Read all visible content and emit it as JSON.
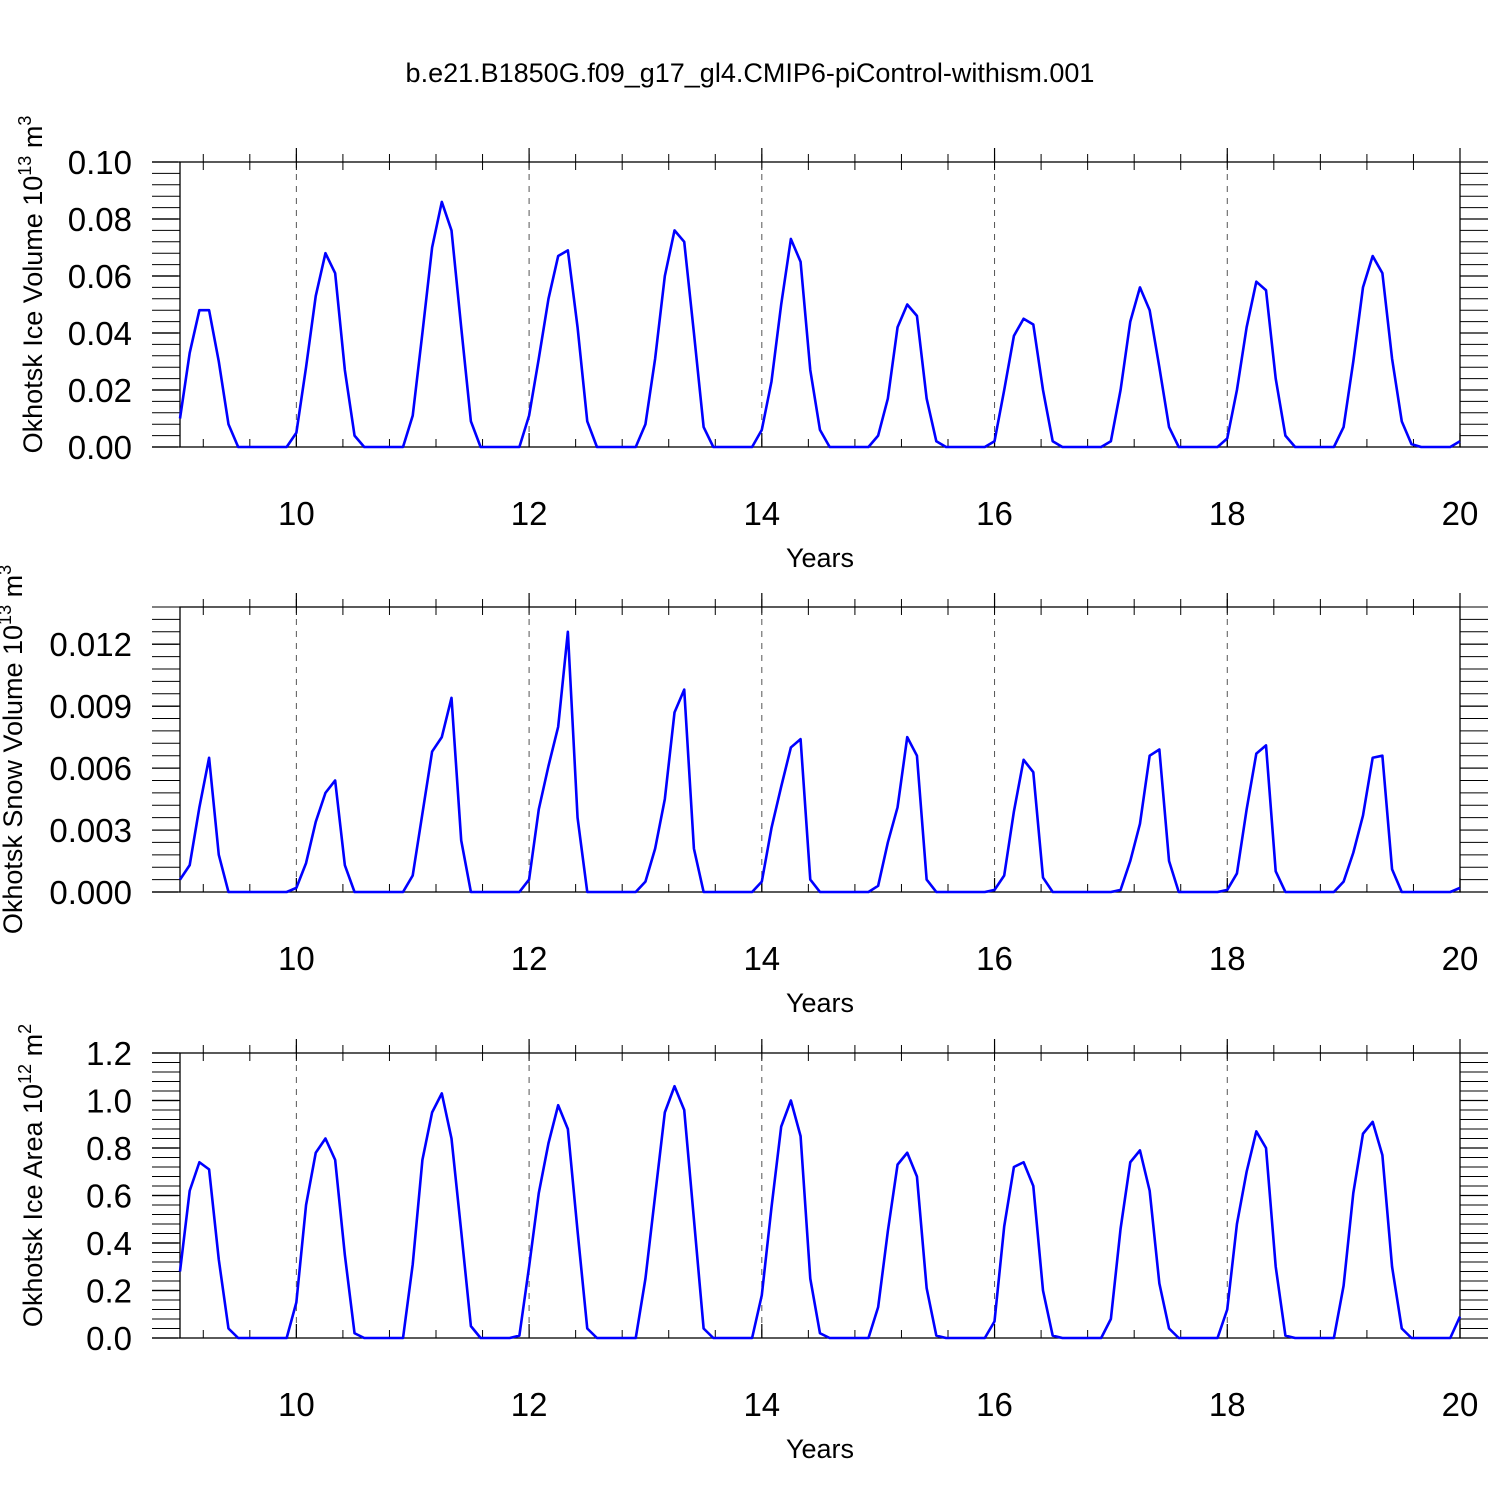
{
  "title": "b.e21.B1850G.f09_g17_gl4.CMIP6-piControl-withism.001",
  "colors": {
    "series": "#0000ff",
    "axis": "#000000",
    "grid": "#555555"
  },
  "chart_data": [
    {
      "type": "line",
      "ylabel": "Okhotsk Ice Volume",
      "ylabel_unit": "10",
      "ylabel_exp": "13",
      "ylabel_unit2": "m",
      "ylabel_exp2": "3",
      "xlabel": "Years",
      "xlim": [
        9,
        20
      ],
      "ylim": [
        0,
        0.1
      ],
      "x_ticks": [
        "10",
        "12",
        "14",
        "16",
        "18",
        "20"
      ],
      "y_ticks": [
        "0.00",
        "0.02",
        "0.04",
        "0.06",
        "0.08",
        "0.10"
      ],
      "grid": "vertical dashed at major x ticks",
      "x_start": 9.0,
      "x_step": 0.08333,
      "series": [
        {
          "values": [
            0.01,
            0.033,
            0.048,
            0.048,
            0.03,
            0.008,
            0.0,
            0.0,
            0.0,
            0.0,
            0.0,
            0.0,
            0.005,
            0.028,
            0.053,
            0.068,
            0.061,
            0.027,
            0.004,
            0.0,
            0.0,
            0.0,
            0.0,
            0.0,
            0.011,
            0.04,
            0.07,
            0.086,
            0.076,
            0.042,
            0.009,
            0.0,
            0.0,
            0.0,
            0.0,
            0.0,
            0.011,
            0.031,
            0.052,
            0.067,
            0.069,
            0.042,
            0.009,
            0.0,
            0.0,
            0.0,
            0.0,
            0.0,
            0.008,
            0.031,
            0.06,
            0.076,
            0.072,
            0.04,
            0.007,
            0.0,
            0.0,
            0.0,
            0.0,
            0.0,
            0.006,
            0.023,
            0.05,
            0.073,
            0.065,
            0.027,
            0.006,
            0.0,
            0.0,
            0.0,
            0.0,
            0.0,
            0.004,
            0.017,
            0.042,
            0.05,
            0.046,
            0.017,
            0.002,
            0.0,
            0.0,
            0.0,
            0.0,
            0.0,
            0.002,
            0.02,
            0.039,
            0.045,
            0.043,
            0.02,
            0.002,
            0.0,
            0.0,
            0.0,
            0.0,
            0.0,
            0.002,
            0.02,
            0.044,
            0.056,
            0.048,
            0.028,
            0.007,
            0.0,
            0.0,
            0.0,
            0.0,
            0.0,
            0.003,
            0.02,
            0.042,
            0.058,
            0.055,
            0.024,
            0.004,
            0.0,
            0.0,
            0.0,
            0.0,
            0.0,
            0.007,
            0.03,
            0.056,
            0.067,
            0.061,
            0.031,
            0.009,
            0.001,
            0.0,
            0.0,
            0.0,
            0.0,
            0.002
          ]
        }
      ]
    },
    {
      "type": "line",
      "ylabel": "Okhotsk Snow Volume",
      "ylabel_unit": "10",
      "ylabel_exp": "13",
      "ylabel_unit2": "m",
      "ylabel_exp2": "3",
      "xlabel": "Years",
      "xlim": [
        9,
        20
      ],
      "ylim": [
        0,
        0.0138
      ],
      "x_ticks": [
        "10",
        "12",
        "14",
        "16",
        "18",
        "20"
      ],
      "y_ticks": [
        "0.000",
        "0.003",
        "0.006",
        "0.009",
        "0.012"
      ],
      "grid": "vertical dashed at major x ticks",
      "x_start": 9.0,
      "x_step": 0.08333,
      "series": [
        {
          "values": [
            0.0006,
            0.0013,
            0.0041,
            0.0065,
            0.0018,
            0.0,
            0.0,
            0.0,
            0.0,
            0.0,
            0.0,
            0.0,
            0.0002,
            0.0014,
            0.0034,
            0.0048,
            0.0054,
            0.0013,
            0.0,
            0.0,
            0.0,
            0.0,
            0.0,
            0.0,
            0.0008,
            0.0038,
            0.0068,
            0.0075,
            0.0094,
            0.0025,
            0.0,
            0.0,
            0.0,
            0.0,
            0.0,
            0.0,
            0.0006,
            0.004,
            0.0061,
            0.008,
            0.0126,
            0.0036,
            0.0,
            0.0,
            0.0,
            0.0,
            0.0,
            0.0,
            0.0005,
            0.0021,
            0.0045,
            0.0087,
            0.0098,
            0.0021,
            0.0,
            0.0,
            0.0,
            0.0,
            0.0,
            0.0,
            0.0005,
            0.0031,
            0.0051,
            0.007,
            0.0074,
            0.0006,
            0.0,
            0.0,
            0.0,
            0.0,
            0.0,
            0.0,
            0.0003,
            0.0024,
            0.0041,
            0.0075,
            0.0066,
            0.0006,
            0.0,
            0.0,
            0.0,
            0.0,
            0.0,
            0.0,
            0.0001,
            0.0008,
            0.0039,
            0.0064,
            0.0058,
            0.0007,
            0.0,
            0.0,
            0.0,
            0.0,
            0.0,
            0.0,
            0.0,
            0.0001,
            0.0015,
            0.0033,
            0.0066,
            0.0069,
            0.0015,
            0.0,
            0.0,
            0.0,
            0.0,
            0.0,
            0.0001,
            0.0009,
            0.004,
            0.0067,
            0.0071,
            0.001,
            0.0,
            0.0,
            0.0,
            0.0,
            0.0,
            0.0,
            0.0005,
            0.0019,
            0.0037,
            0.0065,
            0.0066,
            0.0011,
            0.0,
            0.0,
            0.0,
            0.0,
            0.0,
            0.0,
            0.0002
          ]
        }
      ]
    },
    {
      "type": "line",
      "ylabel": "Okhotsk Ice Area",
      "ylabel_unit": "10",
      "ylabel_exp": "12",
      "ylabel_unit2": "m",
      "ylabel_exp2": "2",
      "xlabel": "Years",
      "xlim": [
        9,
        20
      ],
      "ylim": [
        0,
        1.2
      ],
      "x_ticks": [
        "10",
        "12",
        "14",
        "16",
        "18",
        "20"
      ],
      "y_ticks": [
        "0.0",
        "0.2",
        "0.4",
        "0.6",
        "0.8",
        "1.0",
        "1.2"
      ],
      "grid": "vertical dashed at major x ticks",
      "x_start": 9.0,
      "x_step": 0.08333,
      "series": [
        {
          "values": [
            0.28,
            0.62,
            0.74,
            0.71,
            0.33,
            0.04,
            0.0,
            0.0,
            0.0,
            0.0,
            0.0,
            0.0,
            0.15,
            0.56,
            0.78,
            0.84,
            0.75,
            0.35,
            0.02,
            0.0,
            0.0,
            0.0,
            0.0,
            0.0,
            0.31,
            0.75,
            0.95,
            1.03,
            0.84,
            0.45,
            0.05,
            0.0,
            0.0,
            0.0,
            0.0,
            0.01,
            0.3,
            0.61,
            0.82,
            0.98,
            0.88,
            0.45,
            0.04,
            0.0,
            0.0,
            0.0,
            0.0,
            0.0,
            0.25,
            0.6,
            0.95,
            1.06,
            0.96,
            0.5,
            0.04,
            0.0,
            0.0,
            0.0,
            0.0,
            0.0,
            0.18,
            0.55,
            0.89,
            1.0,
            0.85,
            0.25,
            0.02,
            0.0,
            0.0,
            0.0,
            0.0,
            0.0,
            0.13,
            0.45,
            0.73,
            0.78,
            0.68,
            0.21,
            0.01,
            0.0,
            0.0,
            0.0,
            0.0,
            0.0,
            0.07,
            0.47,
            0.72,
            0.74,
            0.64,
            0.2,
            0.01,
            0.0,
            0.0,
            0.0,
            0.0,
            0.0,
            0.08,
            0.46,
            0.74,
            0.79,
            0.62,
            0.23,
            0.04,
            0.0,
            0.0,
            0.0,
            0.0,
            0.0,
            0.12,
            0.48,
            0.7,
            0.87,
            0.8,
            0.3,
            0.01,
            0.0,
            0.0,
            0.0,
            0.0,
            0.0,
            0.22,
            0.61,
            0.86,
            0.91,
            0.77,
            0.3,
            0.04,
            0.0,
            0.0,
            0.0,
            0.0,
            0.0,
            0.09
          ]
        }
      ]
    }
  ]
}
